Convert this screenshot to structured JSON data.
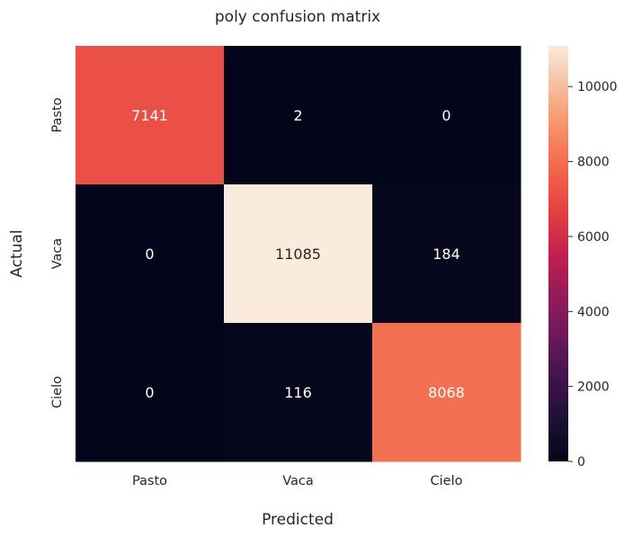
{
  "chart_data": {
    "type": "heatmap",
    "title": "poly confusion matrix",
    "xlabel": "Predicted",
    "ylabel": "Actual",
    "x_categories": [
      "Pasto",
      "Vaca",
      "Cielo"
    ],
    "y_categories": [
      "Pasto",
      "Vaca",
      "Cielo"
    ],
    "values": [
      [
        7141,
        2,
        0
      ],
      [
        0,
        11085,
        184
      ],
      [
        0,
        116,
        8068
      ]
    ],
    "colormap": "rocket",
    "colorbar": {
      "range": [
        0,
        11085
      ],
      "ticks": [
        0,
        2000,
        4000,
        6000,
        8000,
        10000
      ]
    },
    "grid": false
  }
}
